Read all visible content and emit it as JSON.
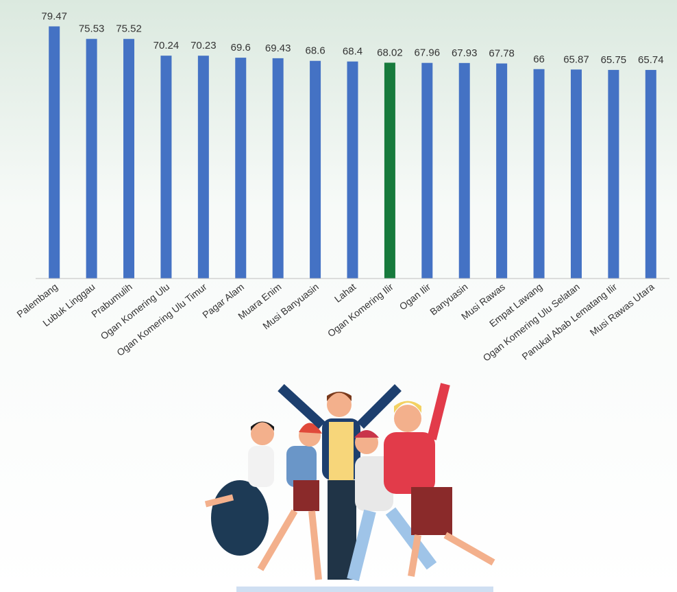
{
  "chart_data": {
    "type": "bar",
    "categories": [
      "Palembang",
      "Lubuk Linggau",
      "Prabumulih",
      "Ogan Komering Ulu",
      "Ogan Komering Ulu Timur",
      "Pagar Alam",
      "Muara Enim",
      "Musi Banyuasin",
      "Lahat",
      "Ogan Komering Ilir",
      "Ogan Ilir",
      "Banyuasin",
      "Musi Rawas",
      "Empat Lawang",
      "Ogan Komering Ulu Selatan",
      "Panukal Abab Lematang Ilir",
      "Musi Rawas Utara"
    ],
    "values": [
      79.47,
      75.53,
      75.52,
      70.24,
      70.23,
      69.6,
      69.43,
      68.6,
      68.4,
      68.02,
      67.96,
      67.93,
      67.78,
      66,
      65.87,
      65.75,
      65.74
    ],
    "colors": [
      "#4472c4",
      "#4472c4",
      "#4472c4",
      "#4472c4",
      "#4472c4",
      "#4472c4",
      "#4472c4",
      "#4472c4",
      "#4472c4",
      "#177a3c",
      "#4472c4",
      "#4472c4",
      "#4472c4",
      "#4472c4",
      "#4472c4",
      "#4472c4",
      "#4472c4"
    ],
    "ylim": [
      0,
      80
    ]
  }
}
